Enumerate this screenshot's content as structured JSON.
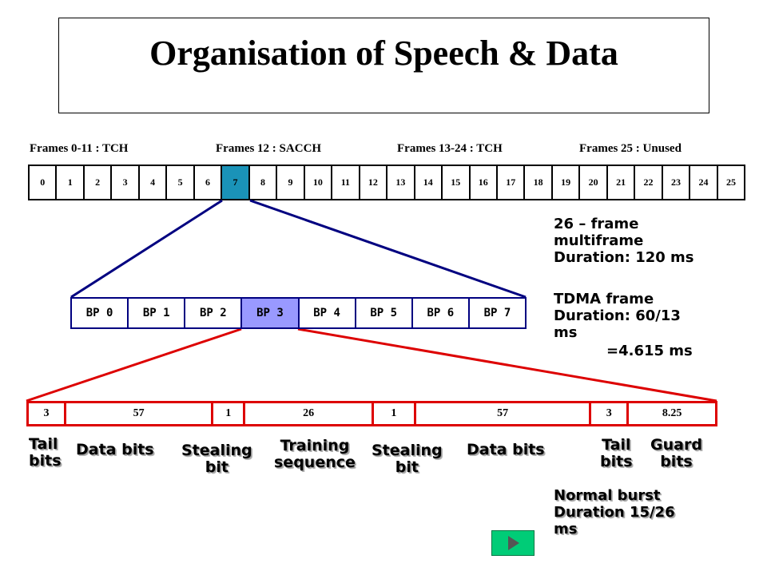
{
  "title": "Organisation of Speech & Data",
  "frame_labels": [
    "Frames 0-11 : TCH",
    "Frames 12 : SACCH",
    "Frames 13-24 : TCH",
    "Frames 25 : Unused"
  ],
  "frames": [
    "0",
    "1",
    "2",
    "3",
    "4",
    "5",
    "6",
    "7",
    "8",
    "9",
    "10",
    "11",
    "12",
    "13",
    "14",
    "15",
    "16",
    "17",
    "18",
    "19",
    "20",
    "21",
    "22",
    "23",
    "24",
    "25"
  ],
  "selected_frame": 7,
  "multiframe_info": [
    "26 – frame",
    "multiframe",
    "Duration: 120 ms"
  ],
  "tdma_info": [
    "TDMA frame",
    "Duration: 60/13",
    "ms",
    "=4.615 ms"
  ],
  "bursts": [
    "BP 0",
    "BP 1",
    "BP 2",
    "BP 3",
    "BP 4",
    "BP 5",
    "BP 6",
    "BP 7"
  ],
  "selected_burst": 3,
  "normal_burst_fields": [
    "3",
    "57",
    "1",
    "26",
    "1",
    "57",
    "3",
    "8.25"
  ],
  "field_labels": [
    [
      "Tail",
      "bits"
    ],
    [
      "Data bits"
    ],
    [
      "Stealing",
      "bit"
    ],
    [
      "Training",
      "sequence"
    ],
    [
      "Stealing",
      "bit"
    ],
    [
      "Data bits"
    ],
    [
      "Tail",
      "bits"
    ],
    [
      "Guard",
      "bits"
    ]
  ],
  "normal_burst_info": [
    "Normal burst",
    "Duration 15/26",
    "ms"
  ],
  "colors": {
    "selected_frame": "#1a93b8",
    "selected_burst": "#9999ff",
    "burst_border": "#000080",
    "normal_burst_border": "#dd0000",
    "nav_button": "#00cc77"
  },
  "nav_icon": "play-triangle-icon"
}
